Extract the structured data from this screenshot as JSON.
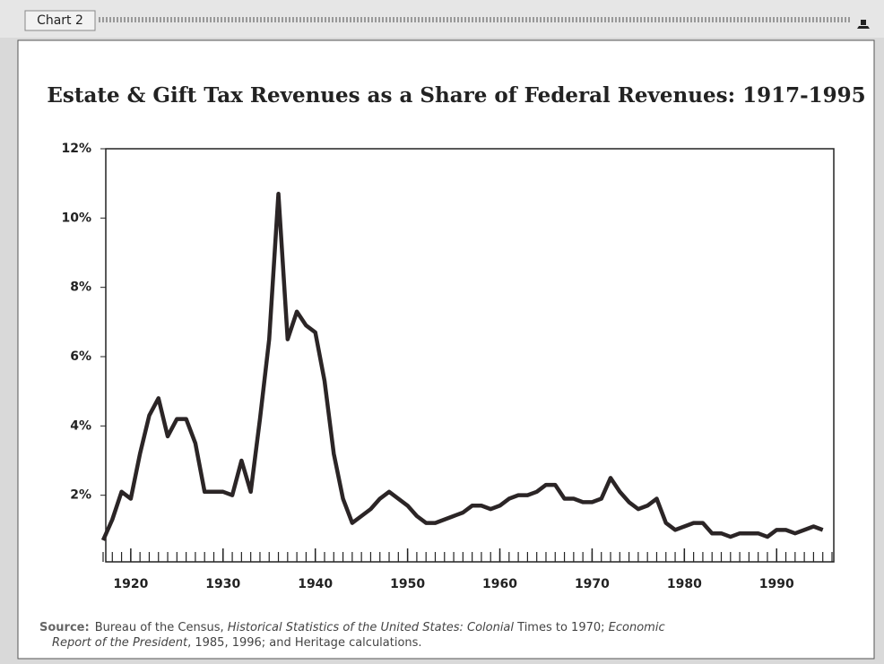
{
  "window": {
    "tab": "Chart 2"
  },
  "chart_data": {
    "type": "line",
    "title": "Estate & Gift Tax Revenues as a Share of Federal Revenues: 1917-1995",
    "x": [
      1917,
      1918,
      1919,
      1920,
      1921,
      1922,
      1923,
      1924,
      1925,
      1926,
      1927,
      1928,
      1929,
      1930,
      1931,
      1932,
      1933,
      1934,
      1935,
      1936,
      1937,
      1938,
      1939,
      1940,
      1941,
      1942,
      1943,
      1944,
      1945,
      1946,
      1947,
      1948,
      1949,
      1950,
      1951,
      1952,
      1953,
      1954,
      1955,
      1956,
      1957,
      1958,
      1959,
      1960,
      1961,
      1962,
      1963,
      1964,
      1965,
      1966,
      1967,
      1968,
      1969,
      1970,
      1971,
      1972,
      1973,
      1974,
      1975,
      1976,
      1977,
      1978,
      1979,
      1980,
      1981,
      1982,
      1983,
      1984,
      1985,
      1986,
      1987,
      1988,
      1989,
      1990,
      1991,
      1992,
      1993,
      1994,
      1995
    ],
    "values": [
      0.7,
      1.3,
      2.1,
      1.9,
      3.2,
      4.3,
      4.8,
      3.7,
      4.2,
      4.2,
      3.5,
      2.1,
      2.1,
      2.1,
      2.0,
      3.0,
      2.1,
      4.2,
      6.5,
      10.7,
      6.5,
      7.3,
      6.9,
      6.7,
      5.3,
      3.2,
      1.9,
      1.2,
      1.4,
      1.6,
      1.9,
      2.1,
      1.9,
      1.7,
      1.4,
      1.2,
      1.2,
      1.3,
      1.4,
      1.5,
      1.7,
      1.7,
      1.6,
      1.7,
      1.9,
      2.0,
      2.0,
      2.1,
      2.3,
      2.3,
      1.9,
      1.9,
      1.8,
      1.8,
      1.9,
      2.5,
      2.1,
      1.8,
      1.6,
      1.7,
      1.9,
      1.2,
      1.0,
      1.1,
      1.2,
      1.2,
      0.9,
      0.9,
      0.8,
      0.9,
      0.9,
      0.9,
      0.8,
      1.0,
      1.0,
      0.9,
      1.0,
      1.1,
      1.0
    ],
    "color": "#2b2526",
    "xlim": [
      1917,
      1996
    ],
    "xticks": [
      1920,
      1930,
      1940,
      1950,
      1960,
      1970,
      1980,
      1990
    ],
    "ylim": [
      0,
      12
    ],
    "yticks": [
      {
        "value": 2,
        "label": "2%"
      },
      {
        "value": 4,
        "label": "4%"
      },
      {
        "value": 6,
        "label": "6%"
      },
      {
        "value": 8,
        "label": "8%"
      },
      {
        "value": 10,
        "label": "10%"
      },
      {
        "value": 12,
        "label": "12%"
      }
    ],
    "source": {
      "label": "Source:",
      "parts": [
        "Bureau of the Census, ",
        "Historical Statistics of the United States: Colonial",
        " Times to 1970; ",
        "Economic",
        "Report of the President",
        ", 1985, 1996; and Heritage calculations."
      ]
    }
  }
}
